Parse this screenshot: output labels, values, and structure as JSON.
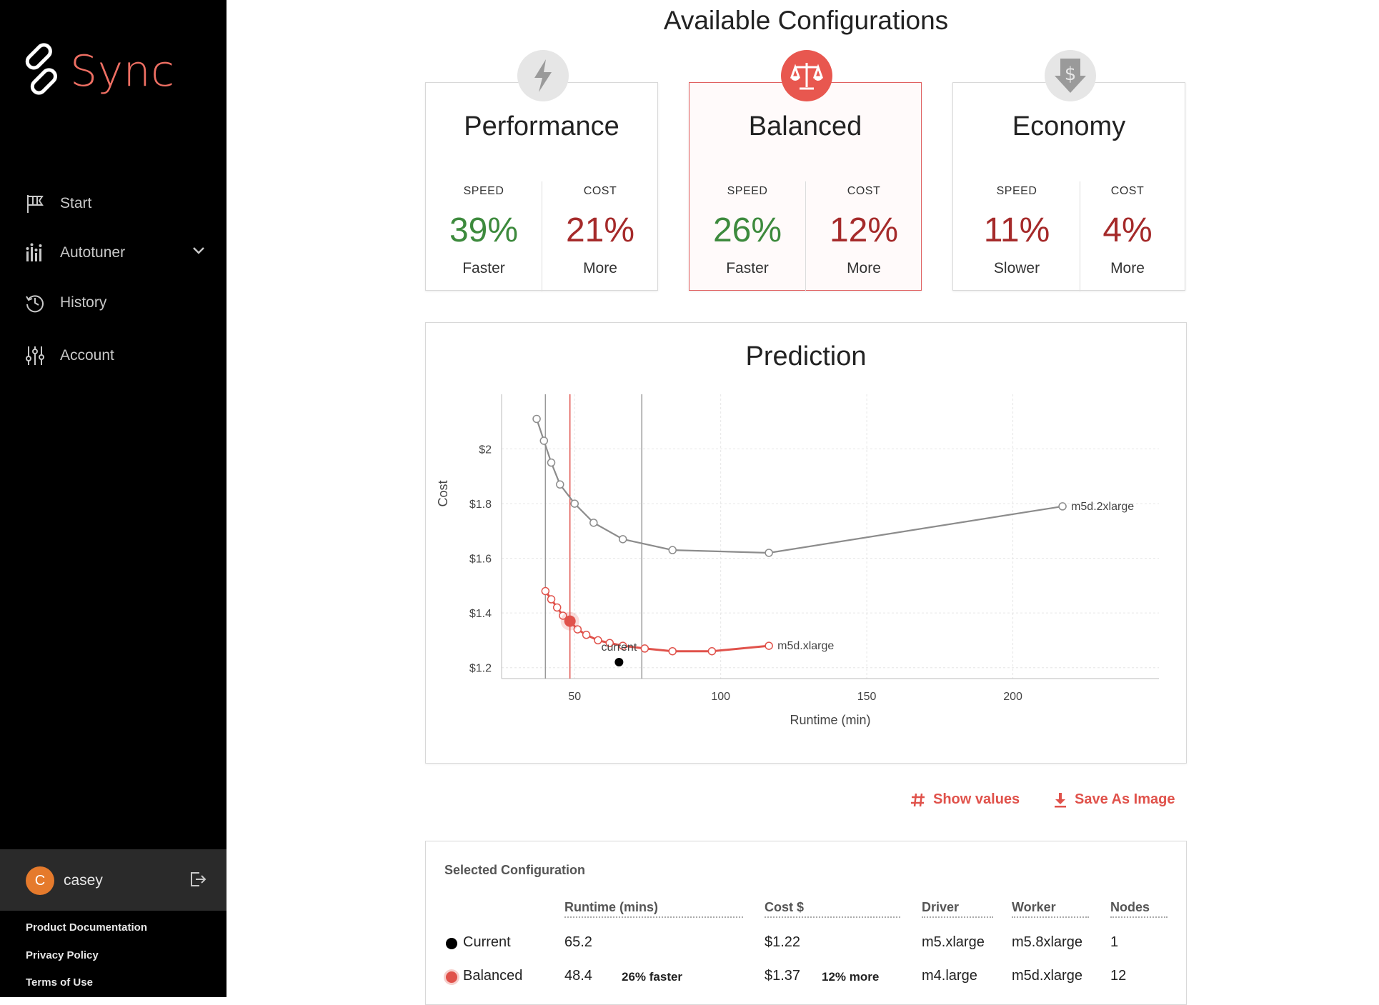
{
  "app": {
    "name": "Sync",
    "accent": "#ef6f63"
  },
  "sidebar": {
    "items": [
      {
        "label": "Start",
        "icon": "flag-icon"
      },
      {
        "label": "Autotuner",
        "icon": "bar-chart-icon"
      },
      {
        "label": "History",
        "icon": "history-icon"
      },
      {
        "label": "Account",
        "icon": "sliders-icon"
      }
    ],
    "user": {
      "initial": "C",
      "name": "casey"
    },
    "footer": [
      "Product Documentation",
      "Privacy Policy",
      "Terms of Use"
    ]
  },
  "main": {
    "title": "Available Configurations",
    "cards": [
      {
        "title": "Performance",
        "icon": "lightning-icon",
        "speed_label": "SPEED",
        "speed_value": "39%",
        "speed_sub": "Faster",
        "cost_label": "COST",
        "cost_value": "21%",
        "cost_sub": "More"
      },
      {
        "title": "Balanced",
        "icon": "scale-icon",
        "speed_label": "SPEED",
        "speed_value": "26%",
        "speed_sub": "Faster",
        "cost_label": "COST",
        "cost_value": "12%",
        "cost_sub": "More"
      },
      {
        "title": "Economy",
        "icon": "dollar-down-icon",
        "speed_label": "SPEED",
        "speed_value": "11%",
        "speed_sub": "Slower",
        "cost_label": "COST",
        "cost_value": "4%",
        "cost_sub": "More"
      }
    ],
    "actions": {
      "show_values": "Show values",
      "save_image": "Save As Image"
    },
    "selected": {
      "title": "Selected Configuration",
      "headers": [
        "Runtime (mins)",
        "Cost $",
        "Driver",
        "Worker",
        "Nodes"
      ],
      "rows": [
        {
          "label": "Current",
          "runtime": "65.2",
          "runtime_delta": "",
          "cost": "$1.22",
          "cost_delta": "",
          "driver": "m5.xlarge",
          "worker": "m5.8xlarge",
          "nodes": "1"
        },
        {
          "label": "Balanced",
          "runtime": "48.4",
          "runtime_delta": "26% faster",
          "cost": "$1.37",
          "cost_delta": "12% more",
          "driver": "m4.large",
          "worker": "m5d.xlarge",
          "nodes": "12"
        }
      ]
    }
  },
  "chart_data": {
    "type": "line",
    "title": "Prediction",
    "xlabel": "Runtime (min)",
    "ylabel": "Cost",
    "xlim": [
      25,
      250
    ],
    "ylim": [
      1.16,
      2.2
    ],
    "xticks": [
      50,
      100,
      150,
      200
    ],
    "yticks": [
      1.2,
      1.4,
      1.6,
      1.8,
      2.0
    ],
    "ytick_labels": [
      "$1.2",
      "$1.4",
      "$1.6",
      "$1.8",
      "$2"
    ],
    "vlines": [
      {
        "x": 40,
        "color": "#999999"
      },
      {
        "x": 73,
        "color": "#999999"
      },
      {
        "x": 48.4,
        "color": "#e0524b"
      }
    ],
    "series": [
      {
        "name": "m5d.2xlarge",
        "color": "#8c8c8c",
        "x": [
          37,
          39.5,
          42,
          45,
          50,
          56.5,
          66.5,
          83.5,
          116.5,
          217
        ],
        "y": [
          2.11,
          2.03,
          1.95,
          1.87,
          1.8,
          1.73,
          1.67,
          1.63,
          1.62,
          1.79
        ]
      },
      {
        "name": "m5d.xlarge",
        "color": "#e0524b",
        "x": [
          40,
          42,
          44,
          46,
          48.4,
          51,
          54,
          58,
          62,
          66.5,
          74,
          83.5,
          97,
          116.5
        ],
        "y": [
          1.48,
          1.45,
          1.42,
          1.39,
          1.37,
          1.34,
          1.32,
          1.3,
          1.29,
          1.28,
          1.27,
          1.26,
          1.26,
          1.28
        ]
      }
    ],
    "highlight": {
      "x": 48.4,
      "y": 1.37,
      "color": "#e0524b"
    },
    "current": {
      "label": "current",
      "x": 65.2,
      "y": 1.22,
      "color": "#000000"
    }
  }
}
